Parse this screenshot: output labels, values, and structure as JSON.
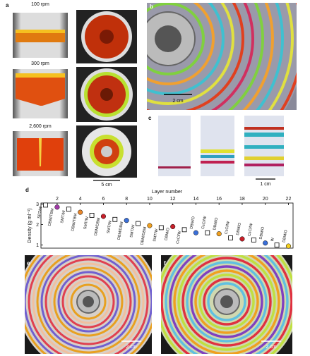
{
  "panels": {
    "a": {
      "label": "a",
      "speeds": [
        "100 rpm",
        "300 rpm",
        "2,600 rpm"
      ],
      "scale_bar": "5 cm"
    },
    "b": {
      "label": "b",
      "scale_bar": "2 cm"
    },
    "c": {
      "label": "c",
      "scale_bar": "1 cm"
    },
    "d": {
      "label": "d"
    },
    "e": {
      "label": "e",
      "scale_bar": "2 cm"
    },
    "f": {
      "label": "f",
      "scale_bar": "2 cm"
    }
  },
  "chart_data": {
    "type": "scatter",
    "x_label": "Layer number",
    "y_label": "Density (g ml⁻¹)",
    "x": [
      1,
      2,
      3,
      4,
      5,
      6,
      7,
      8,
      9,
      10,
      11,
      12,
      13,
      14,
      15,
      16,
      17,
      18,
      19,
      20,
      21,
      22
    ],
    "values": [
      2.95,
      2.85,
      2.75,
      2.6,
      2.45,
      2.4,
      2.25,
      2.2,
      2.05,
      1.95,
      1.85,
      1.9,
      1.75,
      1.6,
      1.6,
      1.55,
      1.35,
      1.3,
      1.25,
      1.1,
      1.0,
      0.95
    ],
    "point_labels": [
      "SPT/W",
      "DBM/TBM",
      "SMT/W",
      "DBM/TBM",
      "SMT/W",
      "DBM/DBM",
      "SMT/W",
      "DBM/DBM",
      "SMT/W",
      "DBM/DBM",
      "SMT/W",
      "DBM/O",
      "CsCl/W",
      "DBM/O",
      "CsCl/W",
      "DBM/O",
      "CsCl/W",
      "DBM/O",
      "CsCl/W",
      "DBM/O",
      "W",
      "DBM/O"
    ],
    "markers": [
      "square",
      "circle",
      "square",
      "circle",
      "square",
      "circle",
      "square",
      "circle",
      "square",
      "circle",
      "square",
      "circle",
      "square",
      "circle",
      "square",
      "circle",
      "square",
      "circle",
      "square",
      "circle",
      "square",
      "circle"
    ],
    "colors": [
      "#ffffff",
      "#a23aa8",
      "#ffffff",
      "#e8862a",
      "#ffffff",
      "#c8202a",
      "#ffffff",
      "#3a6fd8",
      "#ffffff",
      "#f0a020",
      "#ffffff",
      "#c8202a",
      "#ffffff",
      "#3a6fd8",
      "#ffffff",
      "#f0a020",
      "#ffffff",
      "#c8202a",
      "#ffffff",
      "#3a6fd8",
      "#ffffff",
      "#f5d020"
    ],
    "xlim": [
      0.6,
      22.4
    ],
    "ylim": [
      0.85,
      3.05
    ],
    "xticks": [
      2,
      4,
      6,
      8,
      10,
      12,
      14,
      16,
      18,
      20,
      22
    ],
    "yticks": [
      1,
      2,
      3
    ]
  }
}
